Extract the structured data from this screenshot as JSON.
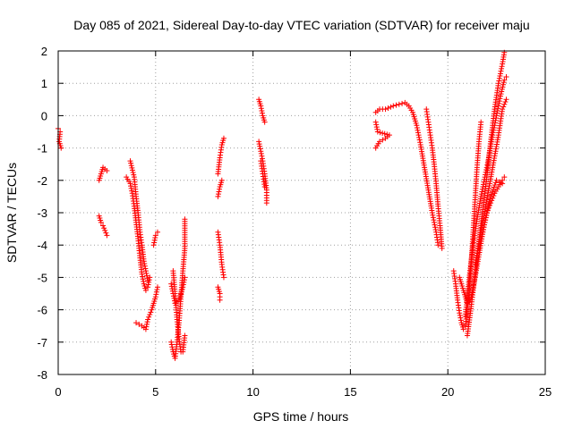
{
  "chart_data": {
    "type": "scatter",
    "title": "Day 085 of 2021, Sidereal Day-to-day VTEC variation (SDTVAR) for receiver maju",
    "xlabel": "GPS time / hours",
    "ylabel": "SDTVAR / TECUs",
    "xlim": [
      0,
      25
    ],
    "ylim": [
      -8,
      2
    ],
    "xticks": [
      "0",
      "5",
      "10",
      "15",
      "20",
      "25"
    ],
    "yticks": [
      "2",
      "1",
      "0",
      "-1",
      "-2",
      "-3",
      "-4",
      "-5",
      "-6",
      "-7",
      "-8"
    ],
    "grid": true,
    "legend": "none",
    "marker": "plus",
    "series_color": "#ff0000",
    "tracks": [
      [
        [
          0.0,
          -0.4
        ],
        [
          0.1,
          -0.5
        ],
        [
          0.05,
          -0.8
        ],
        [
          0.15,
          -1.0
        ]
      ],
      [
        [
          2.1,
          -2.0
        ],
        [
          2.2,
          -1.8
        ],
        [
          2.3,
          -1.6
        ],
        [
          2.5,
          -1.7
        ]
      ],
      [
        [
          2.1,
          -3.1
        ],
        [
          2.2,
          -3.3
        ],
        [
          2.3,
          -3.4
        ],
        [
          2.5,
          -3.7
        ]
      ],
      [
        [
          3.5,
          -1.9
        ],
        [
          3.7,
          -2.1
        ],
        [
          3.8,
          -2.4
        ],
        [
          3.9,
          -2.8
        ],
        [
          4.0,
          -3.3
        ],
        [
          4.1,
          -3.8
        ],
        [
          4.2,
          -4.4
        ],
        [
          4.3,
          -4.9
        ],
        [
          4.4,
          -5.2
        ],
        [
          4.5,
          -5.4
        ],
        [
          4.6,
          -5.3
        ],
        [
          4.7,
          -5.0
        ]
      ],
      [
        [
          3.7,
          -1.4
        ],
        [
          3.9,
          -1.9
        ],
        [
          4.0,
          -2.5
        ],
        [
          4.1,
          -3.0
        ],
        [
          4.2,
          -3.6
        ],
        [
          4.3,
          -4.0
        ],
        [
          4.4,
          -4.5
        ],
        [
          4.5,
          -4.8
        ],
        [
          4.6,
          -5.1
        ]
      ],
      [
        [
          4.0,
          -6.4
        ],
        [
          4.3,
          -6.5
        ],
        [
          4.5,
          -6.6
        ],
        [
          4.6,
          -6.3
        ],
        [
          4.8,
          -6.0
        ],
        [
          5.0,
          -5.6
        ],
        [
          5.1,
          -5.3
        ]
      ],
      [
        [
          4.9,
          -4.0
        ],
        [
          5.0,
          -3.7
        ],
        [
          5.1,
          -3.6
        ]
      ],
      [
        [
          5.8,
          -7.0
        ],
        [
          5.9,
          -7.3
        ],
        [
          6.0,
          -7.5
        ],
        [
          6.1,
          -7.0
        ],
        [
          6.2,
          -6.4
        ],
        [
          6.3,
          -5.6
        ],
        [
          6.4,
          -4.8
        ],
        [
          6.5,
          -4.1
        ],
        [
          6.5,
          -3.2
        ]
      ],
      [
        [
          5.9,
          -4.8
        ],
        [
          6.0,
          -5.5
        ],
        [
          6.1,
          -6.3
        ],
        [
          6.2,
          -6.9
        ],
        [
          6.3,
          -7.3
        ],
        [
          6.4,
          -7.3
        ],
        [
          6.5,
          -6.8
        ]
      ],
      [
        [
          5.8,
          -5.2
        ],
        [
          6.0,
          -5.8
        ],
        [
          6.2,
          -5.7
        ],
        [
          6.4,
          -5.3
        ],
        [
          6.5,
          -5.0
        ]
      ],
      [
        [
          8.2,
          -1.8
        ],
        [
          8.3,
          -1.3
        ],
        [
          8.4,
          -0.9
        ],
        [
          8.5,
          -0.7
        ]
      ],
      [
        [
          8.2,
          -2.5
        ],
        [
          8.3,
          -2.2
        ],
        [
          8.4,
          -2.0
        ]
      ],
      [
        [
          8.2,
          -3.6
        ],
        [
          8.3,
          -4.0
        ],
        [
          8.4,
          -4.6
        ],
        [
          8.5,
          -5.0
        ]
      ],
      [
        [
          8.2,
          -5.3
        ],
        [
          8.3,
          -5.5
        ],
        [
          8.3,
          -5.7
        ]
      ],
      [
        [
          10.3,
          0.5
        ],
        [
          10.4,
          0.3
        ],
        [
          10.5,
          0.0
        ],
        [
          10.6,
          -0.2
        ]
      ],
      [
        [
          10.3,
          -0.8
        ],
        [
          10.4,
          -1.1
        ],
        [
          10.5,
          -1.4
        ],
        [
          10.6,
          -1.8
        ],
        [
          10.7,
          -2.3
        ],
        [
          10.7,
          -2.7
        ]
      ],
      [
        [
          10.4,
          -1.4
        ],
        [
          10.5,
          -1.8
        ],
        [
          10.6,
          -2.2
        ]
      ],
      [
        [
          16.3,
          0.1
        ],
        [
          16.5,
          0.2
        ],
        [
          16.8,
          0.2
        ],
        [
          17.2,
          0.3
        ],
        [
          17.5,
          0.35
        ],
        [
          17.8,
          0.4
        ],
        [
          18.0,
          0.3
        ],
        [
          18.2,
          0.1
        ],
        [
          18.4,
          -0.3
        ],
        [
          18.6,
          -0.9
        ],
        [
          18.8,
          -1.6
        ],
        [
          19.0,
          -2.3
        ],
        [
          19.2,
          -3.0
        ],
        [
          19.4,
          -3.6
        ],
        [
          19.5,
          -4.0
        ]
      ],
      [
        [
          16.3,
          -1.0
        ],
        [
          16.5,
          -0.8
        ],
        [
          16.8,
          -0.7
        ],
        [
          17.0,
          -0.6
        ],
        [
          16.4,
          -0.5
        ],
        [
          16.3,
          -0.2
        ]
      ],
      [
        [
          18.9,
          0.2
        ],
        [
          19.0,
          -0.2
        ],
        [
          19.1,
          -0.6
        ],
        [
          19.2,
          -1.0
        ],
        [
          19.3,
          -1.5
        ],
        [
          19.4,
          -2.1
        ],
        [
          19.5,
          -2.8
        ],
        [
          19.6,
          -3.4
        ],
        [
          19.7,
          -4.1
        ]
      ],
      [
        [
          20.3,
          -4.8
        ],
        [
          20.4,
          -5.2
        ],
        [
          20.5,
          -5.7
        ],
        [
          20.6,
          -6.1
        ],
        [
          20.7,
          -6.4
        ],
        [
          20.8,
          -6.6
        ],
        [
          20.9,
          -6.5
        ],
        [
          21.0,
          -6.0
        ],
        [
          21.1,
          -5.4
        ],
        [
          21.2,
          -4.6
        ],
        [
          21.3,
          -3.6
        ],
        [
          21.4,
          -2.6
        ],
        [
          21.5,
          -1.6
        ],
        [
          21.6,
          -0.8
        ],
        [
          21.7,
          -0.2
        ]
      ],
      [
        [
          20.6,
          -5.0
        ],
        [
          20.8,
          -5.4
        ],
        [
          21.0,
          -5.8
        ],
        [
          21.2,
          -5.6
        ],
        [
          21.4,
          -5.0
        ],
        [
          21.6,
          -4.3
        ],
        [
          21.8,
          -3.6
        ],
        [
          22.0,
          -3.0
        ],
        [
          22.2,
          -2.7
        ],
        [
          22.4,
          -2.4
        ],
        [
          22.6,
          -2.2
        ],
        [
          22.8,
          -2.0
        ],
        [
          22.9,
          -1.9
        ]
      ],
      [
        [
          20.9,
          -6.2
        ],
        [
          21.1,
          -5.0
        ],
        [
          21.3,
          -4.0
        ],
        [
          21.5,
          -3.2
        ],
        [
          21.7,
          -2.5
        ],
        [
          21.9,
          -1.9
        ],
        [
          22.1,
          -1.3
        ],
        [
          22.3,
          -0.6
        ],
        [
          22.5,
          0.0
        ],
        [
          22.7,
          0.6
        ],
        [
          22.9,
          1.1
        ],
        [
          23.0,
          1.2
        ]
      ],
      [
        [
          21.0,
          -6.8
        ],
        [
          21.2,
          -5.9
        ],
        [
          21.4,
          -4.9
        ],
        [
          21.6,
          -3.9
        ],
        [
          21.8,
          -2.9
        ],
        [
          22.0,
          -1.9
        ],
        [
          22.2,
          -0.8
        ],
        [
          22.4,
          0.2
        ],
        [
          22.6,
          1.0
        ],
        [
          22.8,
          1.6
        ],
        [
          22.9,
          1.95
        ]
      ],
      [
        [
          21.4,
          -4.6
        ],
        [
          21.7,
          -3.6
        ],
        [
          22.0,
          -2.6
        ],
        [
          22.3,
          -1.6
        ],
        [
          22.6,
          -0.6
        ],
        [
          22.8,
          0.2
        ],
        [
          23.0,
          0.5
        ]
      ],
      [
        [
          21.6,
          -4.1
        ],
        [
          21.9,
          -3.3
        ],
        [
          22.2,
          -2.5
        ],
        [
          22.5,
          -2.0
        ],
        [
          22.8,
          -2.1
        ]
      ]
    ]
  }
}
